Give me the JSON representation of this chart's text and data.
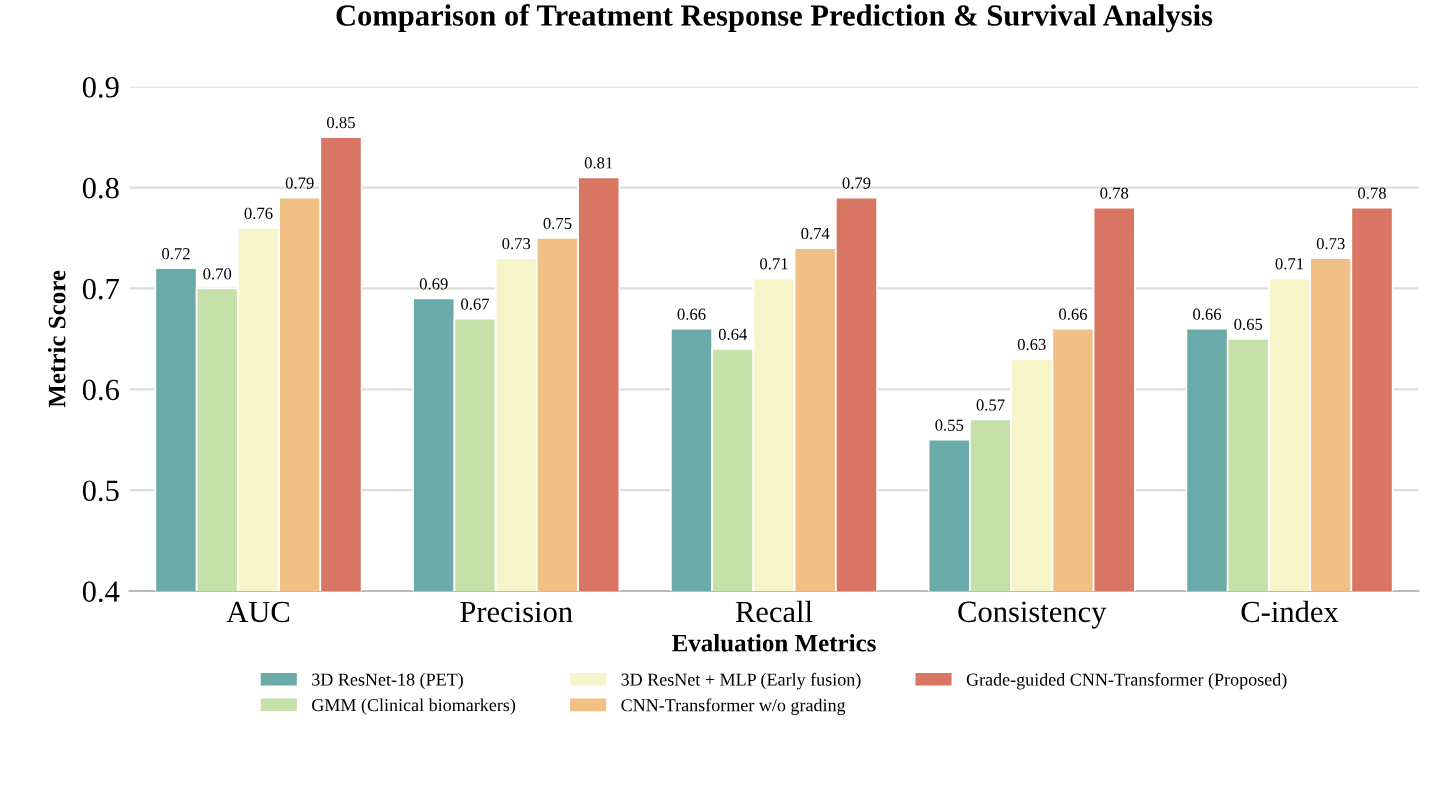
{
  "chart_data": {
    "type": "bar",
    "title": "Comparison of Treatment Response Prediction & Survival Analysis",
    "xlabel": "Evaluation Metrics",
    "ylabel": "Metric Score",
    "categories": [
      "AUC",
      "Precision",
      "Recall",
      "Consistency",
      "C-index"
    ],
    "series": [
      {
        "name": "3D ResNet-18 (PET)",
        "color": "#6aaaa8",
        "values": [
          0.72,
          0.69,
          0.66,
          0.55,
          0.66
        ],
        "value_labels": [
          "0.72",
          "0.69",
          "0.66",
          "0.55",
          "0.66"
        ]
      },
      {
        "name": "GMM (Clinical biomarkers)",
        "color": "#c6e0aa",
        "values": [
          0.7,
          0.67,
          0.64,
          0.57,
          0.65
        ],
        "value_labels": [
          "0.70",
          "0.67",
          "0.64",
          "0.57",
          "0.65"
        ]
      },
      {
        "name": "3D ResNet + MLP (Early fusion)",
        "color": "#f6f5c9",
        "values": [
          0.76,
          0.73,
          0.71,
          0.63,
          0.71
        ],
        "value_labels": [
          "0.76",
          "0.73",
          "0.71",
          "0.63",
          "0.71"
        ]
      },
      {
        "name": "CNN-Transformer w/o grading",
        "color": "#f1c084",
        "values": [
          0.79,
          0.75,
          0.74,
          0.66,
          0.73
        ],
        "value_labels": [
          "0.79",
          "0.75",
          "0.74",
          "0.66",
          "0.73"
        ]
      },
      {
        "name": "Grade-guided CNN-Transformer (Proposed)",
        "color": "#d97563",
        "values": [
          0.85,
          0.81,
          0.79,
          0.78,
          0.78
        ],
        "value_labels": [
          "0.85",
          "0.81",
          "0.79",
          "0.78",
          "0.78"
        ]
      }
    ],
    "ylim": [
      0.4,
      0.9
    ],
    "yticks": [
      0.4,
      0.5,
      0.6,
      0.7,
      0.8,
      0.9
    ],
    "grid": "y",
    "legend": "bottom"
  }
}
